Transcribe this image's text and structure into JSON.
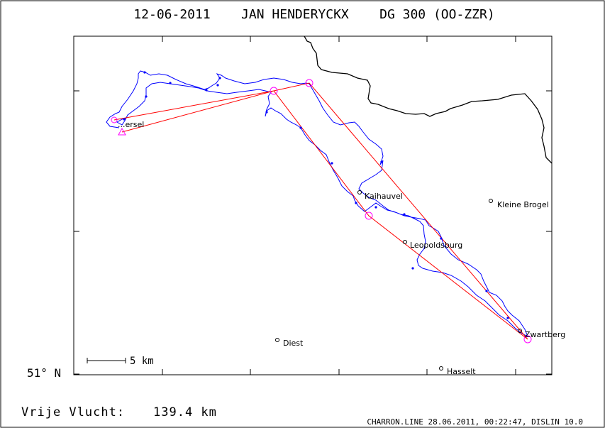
{
  "title": "12-06-2011    JAN HENDERYCKX    DG 300 (OO-ZZR)",
  "latitude_label": "51° N",
  "scale_label": "5 km",
  "distance_label": "Vrije Vlucht:",
  "distance_value": "139.4 km",
  "footer": "CHARRON.LINE 28.06.2011, 00:22:47, DISLIN 10.0",
  "colors": {
    "track": "#0000ff",
    "task": "#ff0000",
    "turnpoint": "#ff00ff",
    "border": "#000000"
  },
  "places": [
    {
      "name": "Kaihauvel"
    },
    {
      "name": "Kleine Brogel"
    },
    {
      "name": "Leopoldsburg"
    },
    {
      "name": "Zwartberg"
    },
    {
      "name": "Diest"
    },
    {
      "name": "Hasselt"
    },
    {
      "name": "...ersel"
    }
  ]
}
